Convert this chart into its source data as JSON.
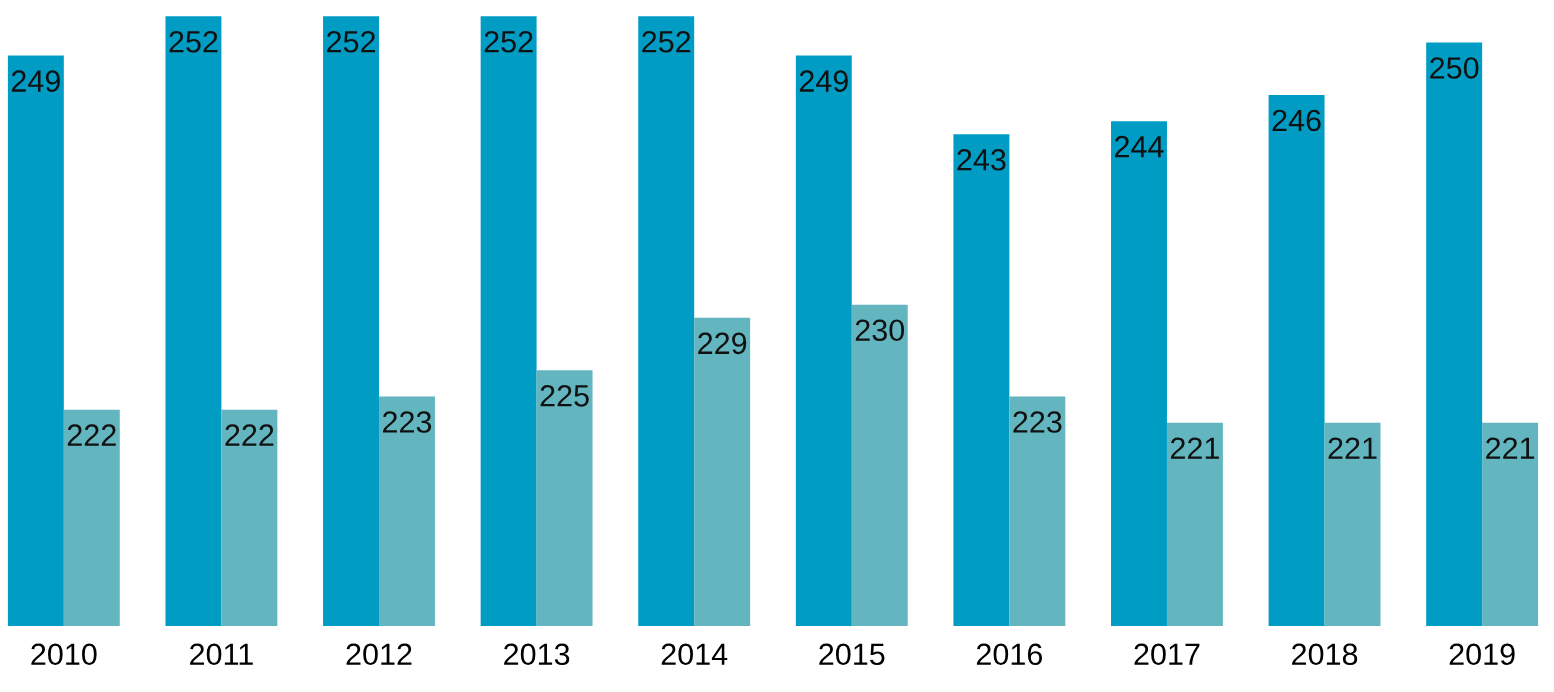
{
  "chart_data": {
    "type": "bar",
    "categories": [
      "2010",
      "2011",
      "2012",
      "2013",
      "2014",
      "2015",
      "2016",
      "2017",
      "2018",
      "2019"
    ],
    "series": [
      {
        "color": "#009cc4",
        "values": [
          249,
          252,
          252,
          252,
          252,
          249,
          243,
          244,
          246,
          250
        ]
      },
      {
        "color": "#63b5bf",
        "values": [
          222,
          222,
          223,
          225,
          229,
          230,
          223,
          221,
          221,
          221
        ]
      }
    ],
    "tick_labels": "x",
    "data_labels": true,
    "grid": false
  }
}
